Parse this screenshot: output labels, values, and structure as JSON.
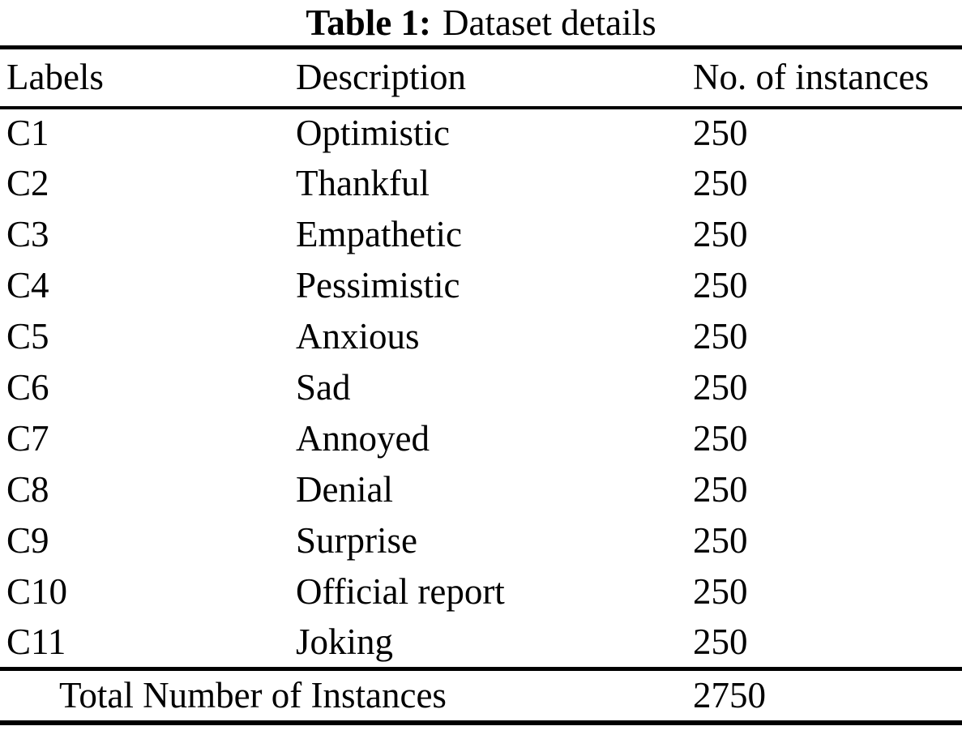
{
  "caption": {
    "label": "Table 1:",
    "text": "Dataset details"
  },
  "table": {
    "columns": [
      "Labels",
      "Description",
      "No. of instances"
    ],
    "rows": [
      {
        "label": "C1",
        "description": "Optimistic",
        "instances": "250"
      },
      {
        "label": "C2",
        "description": "Thankful",
        "instances": "250"
      },
      {
        "label": "C3",
        "description": "Empathetic",
        "instances": "250"
      },
      {
        "label": "C4",
        "description": "Pessimistic",
        "instances": "250"
      },
      {
        "label": "C5",
        "description": "Anxious",
        "instances": "250"
      },
      {
        "label": "C6",
        "description": "Sad",
        "instances": "250"
      },
      {
        "label": "C7",
        "description": "Annoyed",
        "instances": "250"
      },
      {
        "label": "C8",
        "description": "Denial",
        "instances": "250"
      },
      {
        "label": "C9",
        "description": "Surprise",
        "instances": "250"
      },
      {
        "label": "C10",
        "description": "Official report",
        "instances": "250"
      },
      {
        "label": "C11",
        "description": "Joking",
        "instances": "250"
      }
    ],
    "footer": {
      "label": "Total Number of Instances",
      "total": "2750"
    }
  },
  "chart_data": {
    "type": "table",
    "title": "Table 1: Dataset details",
    "categories": [
      "C1",
      "C2",
      "C3",
      "C4",
      "C5",
      "C6",
      "C7",
      "C8",
      "C9",
      "C10",
      "C11"
    ],
    "labels_description": [
      "Optimistic",
      "Thankful",
      "Empathetic",
      "Pessimistic",
      "Anxious",
      "Sad",
      "Annoyed",
      "Denial",
      "Surprise",
      "Official report",
      "Joking"
    ],
    "values": [
      250,
      250,
      250,
      250,
      250,
      250,
      250,
      250,
      250,
      250,
      250
    ],
    "total": 2750
  }
}
